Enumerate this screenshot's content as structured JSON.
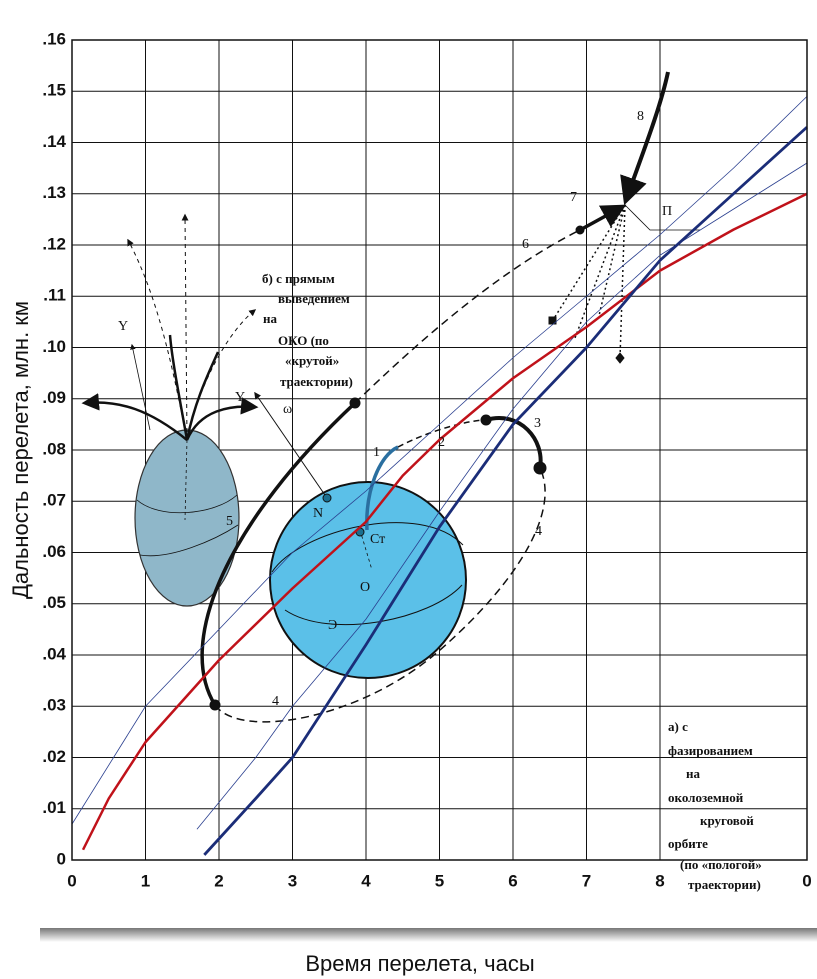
{
  "chart_data": {
    "type": "line",
    "x_label": "Время перелета, часы",
    "y_label": "Дальность перелета, млн. км",
    "xlim": [
      0,
      10
    ],
    "ylim": [
      0,
      0.16
    ],
    "xticks": [
      0,
      1,
      2,
      3,
      4,
      5,
      6,
      7,
      8,
      {
        "value": 10,
        "label": "0"
      }
    ],
    "yticks": [
      {
        "value": 0,
        "label": "0"
      },
      {
        "value": 0.01,
        "label": ".01"
      },
      {
        "value": 0.02,
        "label": ".02"
      },
      {
        "value": 0.03,
        "label": ".03"
      },
      {
        "value": 0.04,
        "label": ".04"
      },
      {
        "value": 0.05,
        "label": ".05"
      },
      {
        "value": 0.06,
        "label": ".06"
      },
      {
        "value": 0.07,
        "label": ".07"
      },
      {
        "value": 0.08,
        "label": ".08"
      },
      {
        "value": 0.09,
        "label": ".09"
      },
      {
        "value": 0.1,
        "label": ".10"
      },
      {
        "value": 0.11,
        "label": ".11"
      },
      {
        "value": 0.12,
        "label": ".12"
      },
      {
        "value": 0.13,
        "label": ".13"
      },
      {
        "value": 0.14,
        "label": ".14"
      },
      {
        "value": 0.15,
        "label": ".15"
      },
      {
        "value": 0.16,
        "label": ".16"
      }
    ],
    "grid": true,
    "series": [
      {
        "color": "#2a3f8f",
        "width": 0.8,
        "x": [
          0,
          1,
          2,
          3,
          4,
          5,
          6,
          7,
          8,
          9,
          10
        ],
        "values": [
          0.007,
          0.03,
          0.045,
          0.06,
          0.072,
          0.085,
          0.098,
          0.11,
          0.122,
          0.135,
          0.149
        ]
      },
      {
        "color": "#2a3f8f",
        "width": 0.8,
        "x": [
          1.7,
          2.5,
          3,
          4,
          5,
          6,
          7,
          8,
          9,
          10
        ],
        "values": [
          0.006,
          0.02,
          0.03,
          0.047,
          0.068,
          0.088,
          0.105,
          0.118,
          0.127,
          0.136
        ]
      },
      {
        "color": "#c0121a",
        "width": 2.5,
        "x": [
          0.15,
          0.5,
          1,
          2,
          3,
          4,
          4.5,
          5,
          6,
          7,
          8,
          9,
          10
        ],
        "values": [
          0.002,
          0.012,
          0.023,
          0.039,
          0.053,
          0.066,
          0.075,
          0.082,
          0.094,
          0.104,
          0.115,
          0.123,
          0.13
        ]
      },
      {
        "color": "#1b2d78",
        "width": 2.8,
        "x": [
          1.8,
          2.5,
          3,
          4,
          5,
          6,
          7,
          8,
          9,
          10
        ],
        "values": [
          0.001,
          0.012,
          0.02,
          0.042,
          0.065,
          0.085,
          0.1,
          0.117,
          0.13,
          0.143
        ]
      }
    ],
    "annotations": [
      "8",
      "7",
      "П",
      "6",
      "1",
      "2",
      "3",
      "4",
      "4",
      "5",
      "N",
      "Ст",
      "О",
      "Э",
      "Y",
      "ω",
      "Y",
      "б) с прямым",
      "выведением",
      "на",
      "ОКО (по",
      "«крутой»",
      "траектории)",
      "а) с",
      "фазированием",
      "на",
      "околоземной",
      "круговой",
      "орбите",
      "(по «пологой»",
      "траектории)"
    ]
  }
}
